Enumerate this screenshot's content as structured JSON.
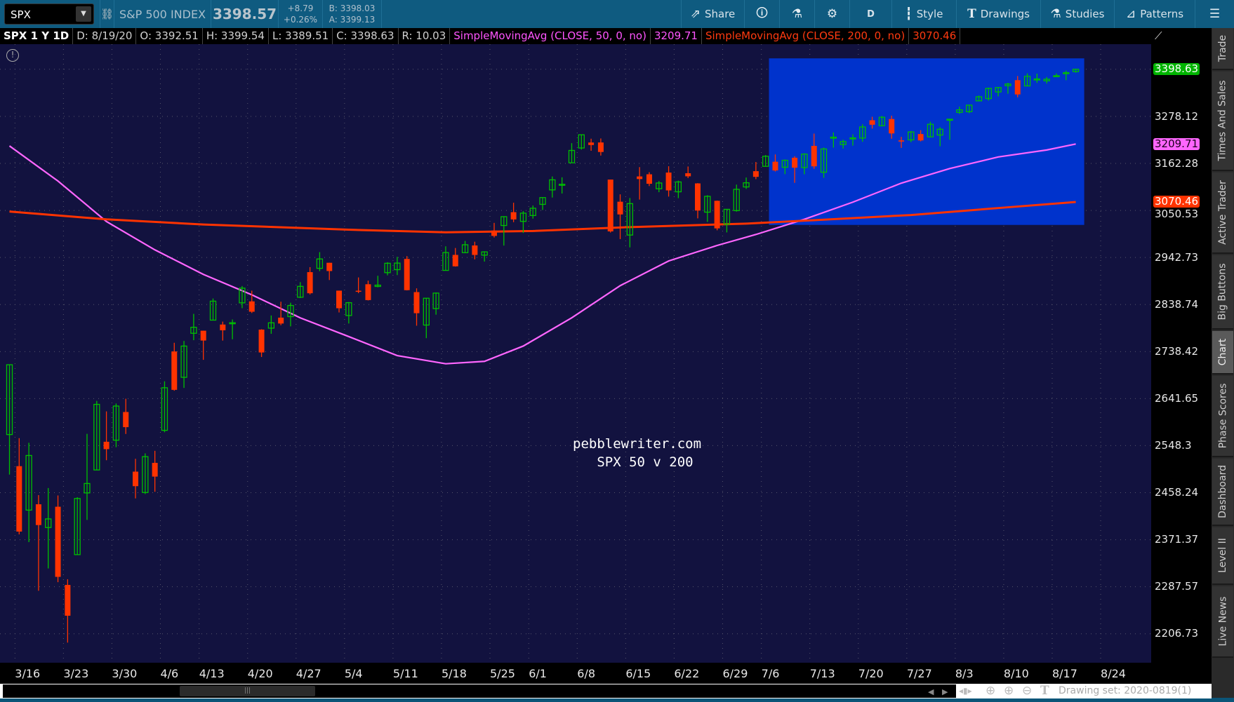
{
  "toolbar": {
    "symbol": "SPX",
    "description": "S&P 500 INDEX",
    "last": "3398.57",
    "change": "+8.79",
    "change_pct": "+0.26%",
    "bid": "B: 3398.03",
    "ask": "A: 3399.13",
    "share": "Share",
    "timeframe": "D",
    "style": "Style",
    "drawings": "Drawings",
    "studies": "Studies",
    "patterns": "Patterns"
  },
  "info": {
    "title": "SPX 1 Y 1D",
    "date": "D: 8/19/20",
    "open": "O: 3392.51",
    "high": "H: 3399.54",
    "low": "L: 3389.51",
    "close": "C: 3398.63",
    "range": "R: 10.03",
    "sma50_label": "SimpleMovingAvg (CLOSE, 50, 0, no)",
    "sma50_value": "3209.71",
    "sma200_label": "SimpleMovingAvg (CLOSE, 200, 0, no)",
    "sma200_value": "3070.46"
  },
  "watermark": {
    "line1": "pebblewriter.com",
    "line2": "   SPX 50 v 200"
  },
  "price_axis": {
    "labels": [
      "3278.12",
      "3162.28",
      "3050.53",
      "2942.73",
      "2838.74",
      "2738.42",
      "2641.65",
      "2548.3",
      "2458.24",
      "2371.37",
      "2287.57",
      "2206.73"
    ],
    "markers": [
      {
        "value": "3398.63",
        "color": "#00b400",
        "text": "#ffffff"
      },
      {
        "value": "3209.71",
        "color": "#ff66ff",
        "text": "#1a001a"
      },
      {
        "value": "3070.46",
        "color": "#ff3300",
        "text": "#ffffff"
      }
    ]
  },
  "date_axis": {
    "labels": [
      "3/16",
      "3/23",
      "3/30",
      "4/6",
      "4/13",
      "4/20",
      "4/27",
      "5/4",
      "5/11",
      "5/18",
      "5/25",
      "6/1",
      "6/8",
      "6/15",
      "6/22",
      "6/29",
      "7/6",
      "7/13",
      "7/20",
      "7/27",
      "8/3",
      "8/10",
      "8/17",
      "8/24"
    ]
  },
  "right_tabs": [
    "Trade",
    "Times And Sales",
    "Active Trader",
    "Big Buttons",
    "Chart",
    "Phase Scores",
    "Dashboard",
    "Level II",
    "Live News"
  ],
  "right_tabs_selected": "Chart",
  "status": {
    "drawing_set": "Drawing set: 2020-0819(1)"
  },
  "colors": {
    "up": "#00c000",
    "down": "#ff3300",
    "sma50": "#ff66ff",
    "sma200": "#ff3300",
    "background": "#12123f",
    "highlight_box": "#0033cc"
  },
  "chart_data": {
    "type": "candlestick",
    "scale": "log",
    "symbol": "SPX",
    "aggregation": "1D",
    "drawings": [
      {
        "type": "rectangle",
        "from": "7/7",
        "to": "8/19",
        "price_low": 3017,
        "price_high": 3427,
        "color": "#0033cc"
      }
    ],
    "candles": [
      [
        "3/13",
        2569.99,
        2711.33,
        2492.37,
        2711.02
      ],
      [
        "3/16",
        2508.59,
        2562.98,
        2380.94,
        2386.13
      ],
      [
        "3/17",
        2425.66,
        2553.93,
        2367.04,
        2529.19
      ],
      [
        "3/18",
        2436.5,
        2453.57,
        2280.52,
        2398.1
      ],
      [
        "3/19",
        2393.48,
        2466.97,
        2319.78,
        2409.39
      ],
      [
        "3/20",
        2431.94,
        2453.01,
        2295.56,
        2304.92
      ],
      [
        "3/23",
        2290.71,
        2300.73,
        2191.86,
        2237.4
      ],
      [
        "3/24",
        2344.44,
        2449.71,
        2344.44,
        2447.33
      ],
      [
        "3/25",
        2457.77,
        2571.42,
        2407.53,
        2475.56
      ],
      [
        "3/26",
        2501.29,
        2637.01,
        2500.72,
        2630.07
      ],
      [
        "3/27",
        2555.87,
        2615.91,
        2520.02,
        2541.47
      ],
      [
        "3/30",
        2558.98,
        2631.8,
        2545.28,
        2626.65
      ],
      [
        "3/31",
        2614.69,
        2641.39,
        2571.15,
        2584.59
      ],
      [
        "4/1",
        2498.08,
        2522.75,
        2447.49,
        2470.5
      ],
      [
        "4/2",
        2458.54,
        2533.22,
        2455.79,
        2526.9
      ],
      [
        "4/3",
        2514.92,
        2538.18,
        2459.96,
        2488.65
      ],
      [
        "4/6",
        2578.28,
        2676.85,
        2574.57,
        2663.68
      ],
      [
        "4/7",
        2738.65,
        2756.89,
        2657.67,
        2659.41
      ],
      [
        "4/8",
        2685.0,
        2760.75,
        2663.3,
        2749.98
      ],
      [
        "4/9",
        2776.99,
        2818.57,
        2762.36,
        2789.82
      ],
      [
        "4/13",
        2782.46,
        2782.46,
        2721.17,
        2761.63
      ],
      [
        "4/14",
        2805.1,
        2851.85,
        2805.1,
        2846.06
      ],
      [
        "4/15",
        2795.64,
        2801.88,
        2761.54,
        2783.36
      ],
      [
        "4/16",
        2799.34,
        2806.51,
        2764.32,
        2799.55
      ],
      [
        "4/17",
        2842.43,
        2879.22,
        2830.88,
        2874.56
      ],
      [
        "4/20",
        2845.62,
        2868.98,
        2820.43,
        2823.16
      ],
      [
        "4/21",
        2784.81,
        2785.54,
        2727.1,
        2736.56
      ],
      [
        "4/22",
        2787.89,
        2815.1,
        2775.95,
        2799.31
      ],
      [
        "4/23",
        2810.42,
        2844.9,
        2794.26,
        2797.8
      ],
      [
        "4/24",
        2812.64,
        2842.71,
        2791.76,
        2836.74
      ],
      [
        "4/27",
        2854.65,
        2887.72,
        2852.89,
        2878.48
      ],
      [
        "4/28",
        2909.96,
        2921.15,
        2860.71,
        2863.39
      ],
      [
        "4/29",
        2918.46,
        2954.86,
        2912.16,
        2939.51
      ],
      [
        "4/30",
        2930.91,
        2930.91,
        2892.47,
        2912.43
      ],
      [
        "5/1",
        2869.09,
        2869.09,
        2821.61,
        2830.71
      ],
      [
        "5/4",
        2815.01,
        2844.24,
        2797.85,
        2842.74
      ],
      [
        "5/5",
        2868.88,
        2898.23,
        2863.55,
        2868.44
      ],
      [
        "5/6",
        2883.14,
        2891.11,
        2847.65,
        2848.42
      ],
      [
        "5/7",
        2878.26,
        2901.92,
        2876.48,
        2881.19
      ],
      [
        "5/8",
        2908.83,
        2932.16,
        2902.88,
        2929.8
      ],
      [
        "5/11",
        2915.46,
        2944.25,
        2903.44,
        2930.19
      ],
      [
        "5/12",
        2939.5,
        2945.82,
        2869.59,
        2870.12
      ],
      [
        "5/13",
        2865.86,
        2874.14,
        2793.15,
        2820.0
      ],
      [
        "5/14",
        2794.54,
        2852.8,
        2766.64,
        2852.5
      ],
      [
        "5/15",
        2829.95,
        2865.01,
        2816.78,
        2863.7
      ],
      [
        "5/18",
        2913.86,
        2968.09,
        2913.86,
        2953.91
      ],
      [
        "5/19",
        2948.59,
        2964.21,
        2922.35,
        2922.94
      ],
      [
        "5/20",
        2953.63,
        2980.29,
        2953.63,
        2971.61
      ],
      [
        "5/21",
        2969.95,
        2978.5,
        2938.57,
        2948.51
      ],
      [
        "5/22",
        2948.05,
        2956.76,
        2933.59,
        2955.45
      ],
      [
        "5/26",
        3004.08,
        3021.72,
        2988.17,
        2991.77
      ],
      [
        "5/27",
        3015.65,
        3036.25,
        2969.75,
        3036.13
      ],
      [
        "5/28",
        3046.61,
        3068.67,
        3023.4,
        3029.73
      ],
      [
        "5/29",
        3025.17,
        3049.17,
        2998.61,
        3044.31
      ],
      [
        "6/1",
        3038.78,
        3062.18,
        3031.54,
        3055.73
      ],
      [
        "6/2",
        3064.78,
        3081.07,
        3051.64,
        3080.82
      ],
      [
        "6/3",
        3098.9,
        3130.94,
        3080.82,
        3122.87
      ],
      [
        "6/4",
        3111.56,
        3128.91,
        3090.41,
        3112.35
      ],
      [
        "6/5",
        3163.84,
        3211.72,
        3163.84,
        3193.93
      ],
      [
        "6/8",
        3199.92,
        3233.13,
        3196.0,
        3232.39
      ],
      [
        "6/9",
        3213.32,
        3222.71,
        3193.11,
        3207.18
      ],
      [
        "6/10",
        3213.42,
        3223.27,
        3181.49,
        3190.14
      ],
      [
        "6/11",
        3123.53,
        3123.53,
        2999.49,
        3002.1
      ],
      [
        "6/12",
        3071.04,
        3088.42,
        2984.47,
        3041.31
      ],
      [
        "6/15",
        2993.76,
        3079.76,
        2965.66,
        3066.59
      ],
      [
        "6/16",
        3131.0,
        3153.45,
        3076.06,
        3124.74
      ],
      [
        "6/17",
        3136.13,
        3141.16,
        3108.03,
        3113.49
      ],
      [
        "6/18",
        3101.64,
        3120.0,
        3093.51,
        3115.34
      ],
      [
        "6/19",
        3140.29,
        3155.53,
        3083.11,
        3097.74
      ],
      [
        "6/22",
        3094.42,
        3120.92,
        3079.39,
        3117.86
      ],
      [
        "6/23",
        3138.7,
        3154.9,
        3127.12,
        3131.29
      ],
      [
        "6/24",
        3114.4,
        3115.01,
        3032.13,
        3050.33
      ],
      [
        "6/25",
        3046.6,
        3086.25,
        3024.01,
        3083.76
      ],
      [
        "6/26",
        3073.2,
        3073.73,
        3004.63,
        3009.05
      ],
      [
        "6/29",
        3018.59,
        3053.89,
        2999.74,
        3053.24
      ],
      [
        "6/30",
        3050.2,
        3111.51,
        3047.83,
        3100.29
      ],
      [
        "7/1",
        3105.92,
        3128.44,
        3101.17,
        3115.86
      ],
      [
        "7/2",
        3143.64,
        3165.81,
        3124.52,
        3130.01
      ],
      [
        "7/6",
        3155.29,
        3182.59,
        3155.29,
        3179.72
      ],
      [
        "7/7",
        3166.44,
        3184.15,
        3142.93,
        3145.32
      ],
      [
        "7/8",
        3153.07,
        3171.8,
        3136.53,
        3169.94
      ],
      [
        "7/9",
        3176.17,
        3179.78,
        3115.7,
        3152.05
      ],
      [
        "7/10",
        3152.47,
        3186.82,
        3136.22,
        3185.04
      ],
      [
        "7/13",
        3205.08,
        3235.32,
        3149.43,
        3155.22
      ],
      [
        "7/14",
        3141.11,
        3200.95,
        3127.66,
        3197.52
      ],
      [
        "7/15",
        3225.98,
        3238.28,
        3200.76,
        3226.56
      ],
      [
        "7/16",
        3208.36,
        3220.39,
        3198.59,
        3215.57
      ],
      [
        "7/17",
        3224.21,
        3233.52,
        3205.65,
        3224.73
      ],
      [
        "7/20",
        3224.29,
        3258.61,
        3215.16,
        3251.84
      ],
      [
        "7/21",
        3268.52,
        3277.29,
        3247.77,
        3257.3
      ],
      [
        "7/22",
        3254.86,
        3279.32,
        3253.1,
        3276.02
      ],
      [
        "7/23",
        3271.64,
        3279.99,
        3222.66,
        3235.66
      ],
      [
        "7/24",
        3218.58,
        3227.26,
        3200.05,
        3215.63
      ],
      [
        "7/27",
        3219.84,
        3241.43,
        3214.25,
        3239.41
      ],
      [
        "7/28",
        3234.27,
        3243.72,
        3216.17,
        3218.44
      ],
      [
        "7/29",
        3227.22,
        3264.74,
        3227.22,
        3258.44
      ],
      [
        "7/30",
        3231.76,
        3250.92,
        3204.13,
        3246.22
      ],
      [
        "7/31",
        3270.45,
        3272.17,
        3220.26,
        3271.12
      ],
      [
        "8/3",
        3288.26,
        3302.73,
        3284.53,
        3294.61
      ],
      [
        "8/4",
        3289.92,
        3306.84,
        3286.37,
        3306.51
      ],
      [
        "8/5",
        3317.37,
        3330.77,
        3317.37,
        3327.77
      ],
      [
        "8/6",
        3323.17,
        3351.03,
        3318.14,
        3349.16
      ],
      [
        "8/7",
        3340.05,
        3352.54,
        3328.72,
        3351.28
      ],
      [
        "8/10",
        3356.04,
        3363.29,
        3335.44,
        3360.47
      ],
      [
        "8/11",
        3370.34,
        3381.01,
        3326.44,
        3333.69
      ],
      [
        "8/12",
        3355.46,
        3387.89,
        3355.46,
        3380.35
      ],
      [
        "8/13",
        3372.95,
        3387.24,
        3363.35,
        3373.43
      ],
      [
        "8/14",
        3368.66,
        3378.51,
        3361.64,
        3372.85
      ],
      [
        "8/17",
        3380.86,
        3387.59,
        3379.22,
        3381.99
      ],
      [
        "8/18",
        3387.04,
        3395.06,
        3370.15,
        3389.78
      ],
      [
        "8/19",
        3392.51,
        3399.54,
        3389.51,
        3398.63
      ]
    ],
    "series": [
      {
        "name": "SimpleMovingAvg (CLOSE, 50, 0, no)",
        "color": "#ff66ff",
        "points": [
          [
            "3/13",
            3205
          ],
          [
            "3/20",
            3120
          ],
          [
            "3/27",
            3025
          ],
          [
            "4/3",
            2960
          ],
          [
            "4/13",
            2905
          ],
          [
            "4/20",
            2860
          ],
          [
            "4/27",
            2810
          ],
          [
            "5/4",
            2770
          ],
          [
            "5/11",
            2730
          ],
          [
            "5/18",
            2713
          ],
          [
            "5/22",
            2718
          ],
          [
            "5/29",
            2750
          ],
          [
            "6/5",
            2810
          ],
          [
            "6/12",
            2880
          ],
          [
            "6/19",
            2935
          ],
          [
            "6/26",
            2970
          ],
          [
            "7/2",
            2995
          ],
          [
            "7/10",
            3030
          ],
          [
            "7/17",
            3070
          ],
          [
            "7/24",
            3115
          ],
          [
            "7/31",
            3150
          ],
          [
            "8/7",
            3178
          ],
          [
            "8/14",
            3195
          ],
          [
            "8/19",
            3209.71
          ]
        ]
      },
      {
        "name": "SimpleMovingAvg (CLOSE, 200, 0, no)",
        "color": "#ff3300",
        "points": [
          [
            "3/13",
            3048
          ],
          [
            "3/27",
            3030
          ],
          [
            "4/13",
            3018
          ],
          [
            "5/4",
            3006
          ],
          [
            "5/18",
            3000
          ],
          [
            "6/1",
            3003
          ],
          [
            "6/15",
            3012
          ],
          [
            "7/1",
            3020
          ],
          [
            "7/13",
            3028
          ],
          [
            "7/27",
            3040
          ],
          [
            "8/10",
            3058
          ],
          [
            "8/19",
            3070.46
          ]
        ]
      }
    ]
  }
}
